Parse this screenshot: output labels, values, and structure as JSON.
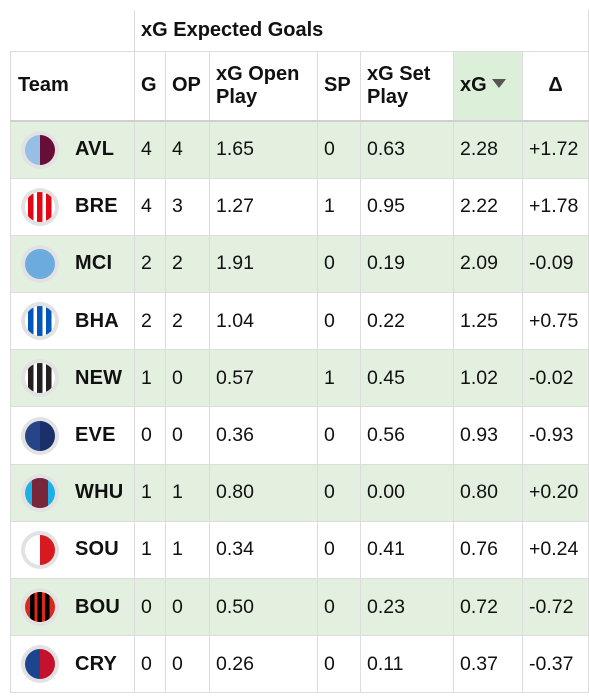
{
  "table": {
    "group_header": "xG Expected Goals",
    "columns": [
      {
        "key": "team",
        "label": "Team"
      },
      {
        "key": "g",
        "label": "G"
      },
      {
        "key": "op",
        "label": "OP"
      },
      {
        "key": "xg_open",
        "label": "xG Open Play"
      },
      {
        "key": "sp",
        "label": "SP"
      },
      {
        "key": "xg_set",
        "label": "xG Set Play"
      },
      {
        "key": "xg",
        "label": "xG",
        "sorted": "desc"
      },
      {
        "key": "delta",
        "label": "Δ"
      }
    ],
    "rows": [
      {
        "team": "AVL",
        "g": "4",
        "op": "4",
        "xg_open": "1.65",
        "sp": "0",
        "xg_set": "0.63",
        "xg": "2.28",
        "delta": "+1.72",
        "badge": "avl-badge-icon",
        "colors": [
          "#95bfe5",
          "#670e36"
        ]
      },
      {
        "team": "BRE",
        "g": "4",
        "op": "3",
        "xg_open": "1.27",
        "sp": "1",
        "xg_set": "0.95",
        "xg": "2.22",
        "delta": "+1.78",
        "badge": "bre-badge-icon",
        "colors": [
          "#e30613",
          "#ffffff"
        ]
      },
      {
        "team": "MCI",
        "g": "2",
        "op": "2",
        "xg_open": "1.91",
        "sp": "0",
        "xg_set": "0.19",
        "xg": "2.09",
        "delta": "-0.09",
        "badge": "mci-badge-icon",
        "colors": [
          "#6cabdd"
        ]
      },
      {
        "team": "BHA",
        "g": "2",
        "op": "2",
        "xg_open": "1.04",
        "sp": "0",
        "xg_set": "0.22",
        "xg": "1.25",
        "delta": "+0.75",
        "badge": "bha-badge-icon",
        "colors": [
          "#0057b8",
          "#ffffff"
        ]
      },
      {
        "team": "NEW",
        "g": "1",
        "op": "0",
        "xg_open": "0.57",
        "sp": "1",
        "xg_set": "0.45",
        "xg": "1.02",
        "delta": "-0.02",
        "badge": "new-badge-icon",
        "colors": [
          "#241f20",
          "#ffffff"
        ]
      },
      {
        "team": "EVE",
        "g": "0",
        "op": "0",
        "xg_open": "0.36",
        "sp": "0",
        "xg_set": "0.56",
        "xg": "0.93",
        "delta": "-0.93",
        "badge": "eve-badge-icon",
        "colors": [
          "#274488",
          "#1b2f6b"
        ]
      },
      {
        "team": "WHU",
        "g": "1",
        "op": "1",
        "xg_open": "0.80",
        "sp": "0",
        "xg_set": "0.00",
        "xg": "0.80",
        "delta": "+0.20",
        "badge": "whu-badge-icon",
        "colors": [
          "#7a263a",
          "#1bb1e7"
        ]
      },
      {
        "team": "SOU",
        "g": "1",
        "op": "1",
        "xg_open": "0.34",
        "sp": "0",
        "xg_set": "0.41",
        "xg": "0.76",
        "delta": "+0.24",
        "badge": "sou-badge-icon",
        "colors": [
          "#ffffff",
          "#d71920"
        ]
      },
      {
        "team": "BOU",
        "g": "0",
        "op": "0",
        "xg_open": "0.50",
        "sp": "0",
        "xg_set": "0.23",
        "xg": "0.72",
        "delta": "-0.72",
        "badge": "bou-badge-icon",
        "colors": [
          "#da291c",
          "#000000"
        ]
      },
      {
        "team": "CRY",
        "g": "0",
        "op": "0",
        "xg_open": "0.26",
        "sp": "0",
        "xg_set": "0.11",
        "xg": "0.37",
        "delta": "-0.37",
        "badge": "cry-badge-icon",
        "colors": [
          "#1b458f",
          "#c4122e"
        ]
      }
    ]
  }
}
